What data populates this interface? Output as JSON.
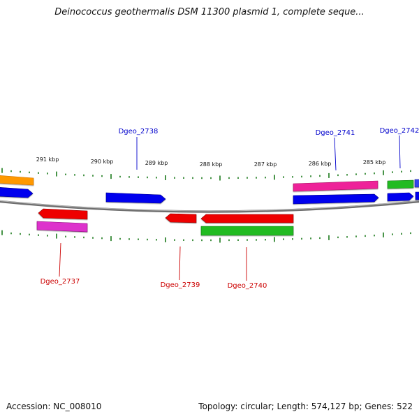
{
  "title": "Deinococcus geothermalis DSM 11300 plasmid 1, complete seque...",
  "footer": {
    "accession": "Accession: NC_008010",
    "summary": "Topology: circular; Length: 574,127 bp; Genes: 522"
  },
  "map": {
    "colors": {
      "backbone": "#808080",
      "tick": "#1a7a1a",
      "blue": "#0000ee",
      "red": "#ee0000",
      "green": "#22bb22",
      "pink": "#ee2299",
      "orange": "#ff9900",
      "magenta": "#dd33cc",
      "label_top": "#0000cc",
      "label_bottom": "#cc0000"
    },
    "kbp_ticks": [
      "291 kbp",
      "290 kbp",
      "289 kbp",
      "288 kbp",
      "287 kbp",
      "286 kbp",
      "285 kbp"
    ],
    "gene_labels_top": [
      "Dgeo_2738",
      "Dgeo_2741",
      "Dgeo_2742"
    ],
    "gene_labels_bottom": [
      "Dgeo_2737",
      "Dgeo_2739",
      "Dgeo_2740"
    ],
    "genes": [
      {
        "color": "orange",
        "track": "forward_outer",
        "direction": "right"
      },
      {
        "color": "blue",
        "track": "forward_inner",
        "direction": "right"
      },
      {
        "color": "blue",
        "track": "forward_inner",
        "direction": "right"
      },
      {
        "color": "pink",
        "track": "forward_outer",
        "direction": "right"
      },
      {
        "color": "blue",
        "track": "forward_inner",
        "direction": "right"
      },
      {
        "color": "green",
        "track": "forward_outer",
        "direction": "right"
      },
      {
        "color": "blue",
        "track": "forward_inner",
        "direction": "right"
      },
      {
        "color": "red",
        "track": "reverse_inner",
        "direction": "left"
      },
      {
        "color": "magenta",
        "track": "reverse_outer",
        "direction": "none"
      },
      {
        "color": "red",
        "track": "reverse_inner",
        "direction": "left"
      },
      {
        "color": "red",
        "track": "reverse_inner",
        "direction": "left"
      },
      {
        "color": "green",
        "track": "reverse_outer",
        "direction": "none"
      }
    ]
  }
}
